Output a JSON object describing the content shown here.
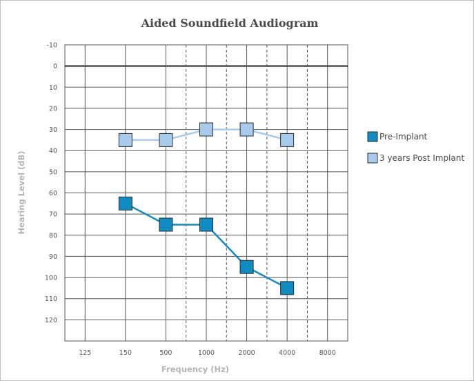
{
  "chart_data": {
    "type": "line",
    "title": "Aided Soundfield Audiogram",
    "xlabel": "Frequency (Hz)",
    "ylabel": "Hearing Level (dB)",
    "categories": [
      "125",
      "150",
      "500",
      "1000",
      "2000",
      "4000",
      "8000"
    ],
    "ylim": [
      -10,
      130
    ],
    "y_ticks": [
      "-10",
      "0",
      "10",
      "20",
      "30",
      "40",
      "50",
      "60",
      "70",
      "80",
      "90",
      "100",
      "110",
      "120"
    ],
    "y_inverted": true,
    "grid": true,
    "legend_position": "right",
    "series": [
      {
        "name": "Pre-Implant",
        "color": "#0f8dc3",
        "x": [
          "150",
          "500",
          "1000",
          "2000",
          "4000"
        ],
        "values": [
          65,
          75,
          75,
          95,
          105
        ]
      },
      {
        "name": "3 years Post Implant",
        "color": "#a7cbec",
        "x": [
          "150",
          "500",
          "1000",
          "2000",
          "4000"
        ],
        "values": [
          35,
          35,
          30,
          30,
          35
        ]
      }
    ]
  }
}
